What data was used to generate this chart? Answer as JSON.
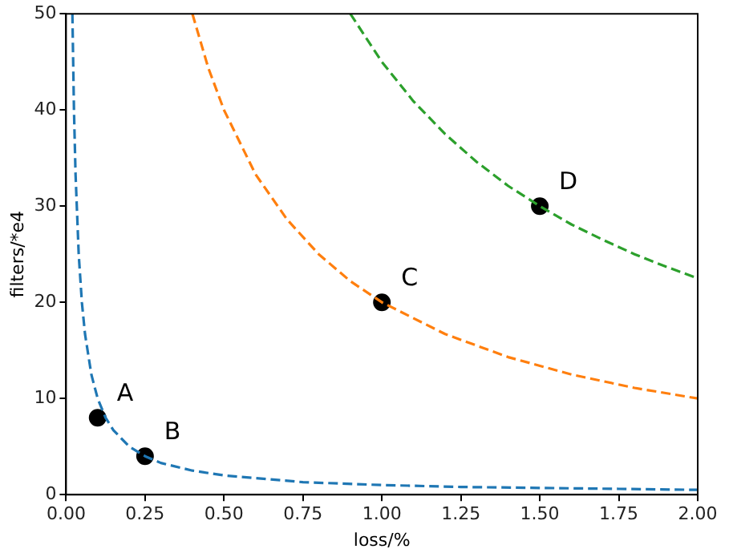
{
  "chart_data": {
    "type": "line",
    "xlabel": "loss/%",
    "ylabel": "filters/*e4",
    "xlim": [
      0,
      2
    ],
    "ylim": [
      0,
      50
    ],
    "xticks": [
      {
        "value": 0,
        "label": "0.00"
      },
      {
        "value": 0.25,
        "label": "0.25"
      },
      {
        "value": 0.5,
        "label": "0.50"
      },
      {
        "value": 0.75,
        "label": "0.75"
      },
      {
        "value": 1,
        "label": "1.00"
      },
      {
        "value": 1.25,
        "label": "1.25"
      },
      {
        "value": 1.5,
        "label": "1.50"
      },
      {
        "value": 1.75,
        "label": "1.75"
      },
      {
        "value": 2,
        "label": "2.00"
      }
    ],
    "yticks": [
      0,
      10,
      20,
      30,
      40,
      50
    ],
    "grid": false,
    "legend": false,
    "line_style": "dashed",
    "marker": "none",
    "series": [
      {
        "color": "#1f77b4",
        "x": [
          0.02,
          0.025,
          0.03,
          0.04,
          0.05,
          0.06,
          0.08,
          0.1,
          0.125,
          0.15,
          0.2,
          0.25,
          0.3,
          0.4,
          0.5,
          0.75,
          1,
          1.25,
          1.5,
          1.75,
          2
        ],
        "values": [
          50,
          40,
          33.3,
          25,
          20,
          16.7,
          12.5,
          10,
          8,
          6.7,
          5,
          4,
          3.3,
          2.5,
          2,
          1.3,
          1,
          0.8,
          0.7,
          0.6,
          0.5
        ]
      },
      {
        "color": "#ff7f0e",
        "x": [
          0.4,
          0.45,
          0.5,
          0.6,
          0.7,
          0.8,
          0.9,
          1,
          1.2,
          1.4,
          1.6,
          1.8,
          2
        ],
        "values": [
          50,
          44.4,
          40,
          33.3,
          28.6,
          25,
          22.2,
          20,
          16.7,
          14.3,
          12.5,
          11.1,
          10
        ]
      },
      {
        "color": "#2ca02c",
        "x": [
          0.9,
          1,
          1.1,
          1.2,
          1.3,
          1.4,
          1.5,
          1.6,
          1.7,
          1.8,
          1.9,
          2
        ],
        "values": [
          50,
          45,
          40.9,
          37.5,
          34.6,
          32.1,
          30,
          28.1,
          26.5,
          25,
          23.7,
          22.5
        ]
      },
      {
        "type": "scatter",
        "marker": "circle",
        "color": "#000000",
        "x": [
          0.1,
          0.25,
          1,
          1.5
        ],
        "values": [
          8,
          4,
          20,
          30
        ]
      }
    ],
    "annotations": [
      {
        "text": "A",
        "x": 0.1,
        "y": 8
      },
      {
        "text": "B",
        "x": 0.25,
        "y": 4
      },
      {
        "text": "C",
        "x": 1,
        "y": 20
      },
      {
        "text": "D",
        "x": 1.5,
        "y": 30
      }
    ]
  }
}
